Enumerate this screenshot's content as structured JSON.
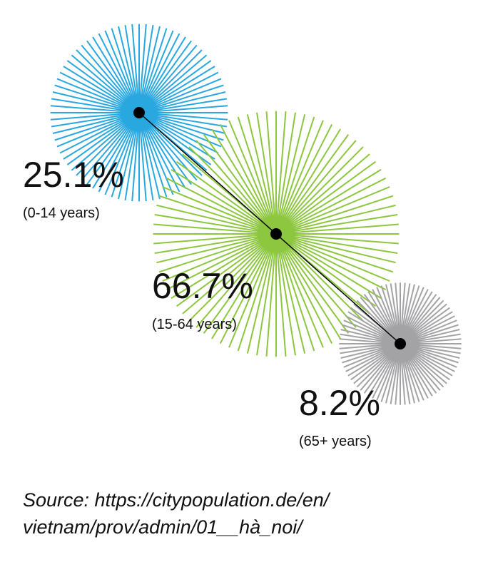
{
  "chart_data": {
    "type": "starburst",
    "categories": [
      "(0-14 years)",
      "(15-64 years)",
      "(65+ years)"
    ],
    "values": [
      25.1,
      66.7,
      8.2
    ],
    "value_labels": [
      "25.1%",
      "66.7%",
      "8.2%"
    ],
    "colors": [
      "#29a8e0",
      "#8dc63f",
      "#a3a3a6"
    ],
    "source": [
      "Source: https://citypopulation.de/en/",
      "vietnam/prov/admin/01__hà_noi/"
    ]
  }
}
